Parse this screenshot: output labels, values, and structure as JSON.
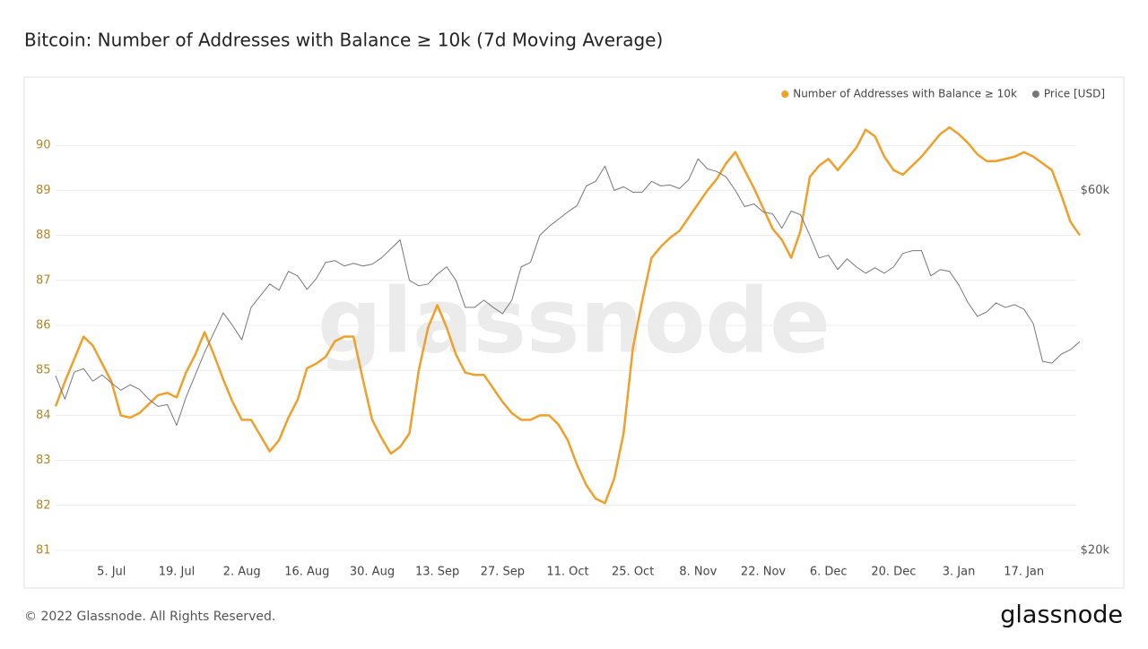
{
  "chart_data": {
    "type": "line",
    "title": "Bitcoin: Number of Addresses with Balance ≥ 10k (7d Moving Average)",
    "watermark": "glassnode",
    "footer": "© 2022 Glassnode. All Rights Reserved.",
    "logo": "glassnode",
    "categories": [
      null,
      null,
      null,
      null,
      null,
      null,
      "5. Jul",
      null,
      null,
      null,
      null,
      null,
      null,
      "19. Jul",
      null,
      null,
      null,
      null,
      null,
      null,
      "2. Aug",
      null,
      null,
      null,
      null,
      null,
      null,
      "16. Aug",
      null,
      null,
      null,
      null,
      null,
      null,
      "30. Aug",
      null,
      null,
      null,
      null,
      null,
      null,
      "13. Sep",
      null,
      null,
      null,
      null,
      null,
      null,
      "27. Sep",
      null,
      null,
      null,
      null,
      null,
      null,
      "11. Oct",
      null,
      null,
      null,
      null,
      null,
      null,
      "25. Oct",
      null,
      null,
      null,
      null,
      null,
      null,
      "8. Nov",
      null,
      null,
      null,
      null,
      null,
      null,
      "22. Nov",
      null,
      null,
      null,
      null,
      null,
      null,
      "6. Dec",
      null,
      null,
      null,
      null,
      null,
      null,
      "20. Dec",
      null,
      null,
      null,
      null,
      null,
      null,
      "3. Jan",
      null,
      null,
      null,
      null,
      null,
      null,
      "17. Jan",
      null,
      null,
      null,
      null,
      null,
      null
    ],
    "series": [
      {
        "name": "Number of Addresses with Balance ≥ 10k",
        "color": "#f0a02a",
        "axis": "y",
        "values": [
          84.2,
          84.75,
          85.25,
          85.75,
          85.55,
          85.15,
          84.75,
          84.0,
          83.95,
          84.05,
          84.25,
          84.45,
          84.5,
          84.4,
          84.95,
          85.35,
          85.85,
          85.35,
          84.8,
          84.3,
          83.9,
          83.9,
          83.55,
          83.2,
          83.45,
          83.95,
          84.35,
          85.05,
          85.15,
          85.3,
          85.65,
          85.75,
          85.75,
          84.8,
          83.9,
          83.5,
          83.15,
          83.3,
          83.6,
          85.0,
          85.95,
          86.45,
          85.95,
          85.35,
          84.95,
          84.9,
          84.9,
          84.6,
          84.3,
          84.05,
          83.9,
          83.9,
          84.0,
          84.0,
          83.8,
          83.45,
          82.9,
          82.45,
          82.15,
          82.05,
          82.6,
          83.6,
          85.5,
          86.55,
          87.5,
          87.75,
          87.95,
          88.1,
          88.4,
          88.7,
          89.0,
          89.25,
          89.6,
          89.85,
          89.45,
          89.05,
          88.6,
          88.15,
          87.9,
          87.5,
          88.1,
          89.3,
          89.55,
          89.7,
          89.45,
          89.7,
          89.95,
          90.35,
          90.2,
          89.75,
          89.45,
          89.35,
          89.55,
          89.75,
          90.0,
          90.25,
          90.4,
          90.25,
          90.05,
          89.8,
          89.65,
          89.65,
          89.7,
          89.75,
          89.85,
          89.75,
          89.6,
          89.45,
          88.9,
          88.3,
          88.0
        ]
      },
      {
        "name": "Price [USD]",
        "color": "#777777",
        "axis": "y2",
        "values": [
          39400,
          36800,
          39800,
          40200,
          38800,
          39500,
          38600,
          37800,
          38400,
          37900,
          36800,
          36000,
          36200,
          33900,
          37000,
          39500,
          42000,
          44200,
          46400,
          45000,
          43400,
          47000,
          48300,
          49600,
          48900,
          51000,
          50500,
          49000,
          50200,
          52000,
          52200,
          51600,
          51900,
          51600,
          51800,
          52500,
          53500,
          54500,
          50000,
          49400,
          49600,
          50700,
          51500,
          50000,
          47000,
          47000,
          47800,
          47000,
          46300,
          47800,
          51500,
          52000,
          55000,
          56000,
          56800,
          57600,
          58300,
          60500,
          61000,
          62700,
          60000,
          60400,
          59800,
          59800,
          61000,
          60500,
          60600,
          60200,
          61200,
          63500,
          62400,
          62100,
          61500,
          60000,
          58200,
          58500,
          57600,
          57400,
          55800,
          57700,
          57300,
          55000,
          52500,
          52800,
          51200,
          52400,
          51500,
          50800,
          51400,
          50800,
          51500,
          53000,
          53300,
          53300,
          50500,
          51200,
          51000,
          49500,
          47500,
          46000,
          46500,
          47500,
          47000,
          47300,
          46800,
          45200,
          41000,
          40800,
          41800,
          42300,
          43200
        ]
      }
    ],
    "ylim": [
      81,
      91
    ],
    "yticks": [
      81,
      82,
      83,
      84,
      85,
      86,
      87,
      88,
      89,
      90
    ],
    "y2lim": [
      20000,
      70000
    ],
    "y2ticks": [
      {
        "value": 20000,
        "label": "$20k"
      },
      {
        "value": 60000,
        "label": "$60k"
      }
    ],
    "grid": true,
    "legend": "top-right"
  }
}
